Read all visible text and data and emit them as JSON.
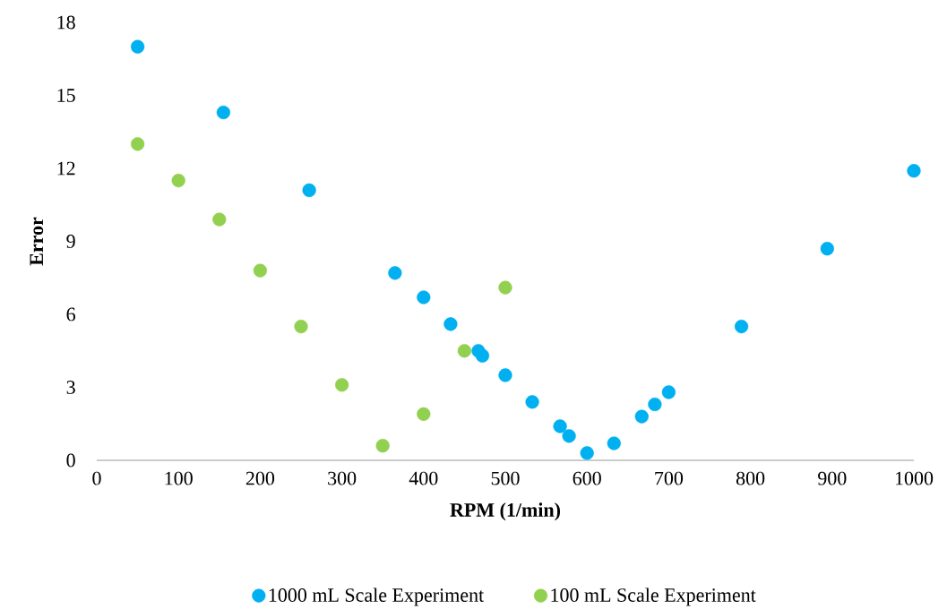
{
  "chart_data": {
    "type": "scatter",
    "xlabel": "RPM (1/min)",
    "ylabel": "Error",
    "xlim": [
      0,
      1000
    ],
    "ylim": [
      0,
      18
    ],
    "xticks": [
      0,
      100,
      200,
      300,
      400,
      500,
      600,
      700,
      800,
      900,
      1000
    ],
    "yticks": [
      0,
      3,
      6,
      9,
      12,
      15,
      18
    ],
    "grid": false,
    "legend": "bottom",
    "marker": "circle",
    "series": [
      {
        "name": "1000 mL Scale Experiment",
        "color": "#00b0f0",
        "x": [
          50,
          155,
          260,
          365,
          400,
          433,
          467,
          472,
          500,
          533,
          567,
          578,
          600,
          633,
          667,
          683,
          700,
          789,
          894,
          1000
        ],
        "values": [
          17.0,
          14.3,
          11.1,
          7.7,
          6.7,
          5.6,
          4.5,
          4.3,
          3.5,
          2.4,
          1.4,
          1.0,
          0.3,
          0.7,
          1.8,
          2.3,
          2.8,
          5.5,
          8.7,
          11.9
        ]
      },
      {
        "name": "100 mL Scale Experiment",
        "color": "#92d050",
        "x": [
          50,
          100,
          150,
          200,
          250,
          300,
          350,
          400,
          450,
          500
        ],
        "values": [
          13.0,
          11.5,
          9.9,
          7.8,
          5.5,
          3.1,
          0.6,
          1.9,
          4.5,
          7.1
        ]
      }
    ]
  }
}
